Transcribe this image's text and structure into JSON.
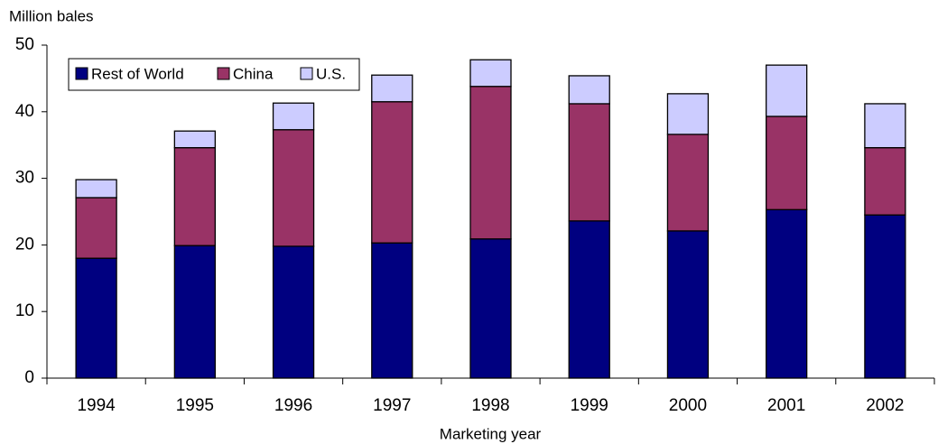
{
  "chart_data": {
    "type": "stacked_bar",
    "y_label": "Million bales",
    "x_label": "Marketing year",
    "categories": [
      "1994",
      "1995",
      "1996",
      "1997",
      "1998",
      "1999",
      "2000",
      "2001",
      "2002"
    ],
    "series": [
      {
        "name": "Rest of World",
        "color": "#000080",
        "values": [
          18.0,
          19.9,
          19.8,
          20.3,
          20.9,
          23.6,
          22.1,
          25.3,
          24.5
        ]
      },
      {
        "name": "China",
        "color": "#993366",
        "values": [
          9.1,
          14.7,
          17.5,
          21.2,
          22.9,
          17.6,
          14.5,
          14.0,
          10.1
        ]
      },
      {
        "name": "U.S.",
        "color": "#ccccff",
        "values": [
          2.7,
          2.5,
          4.0,
          4.0,
          4.0,
          4.2,
          6.1,
          7.7,
          6.6
        ]
      }
    ],
    "ylim": [
      0,
      50
    ],
    "yticks": [
      0,
      10,
      20,
      30,
      40,
      50
    ]
  }
}
